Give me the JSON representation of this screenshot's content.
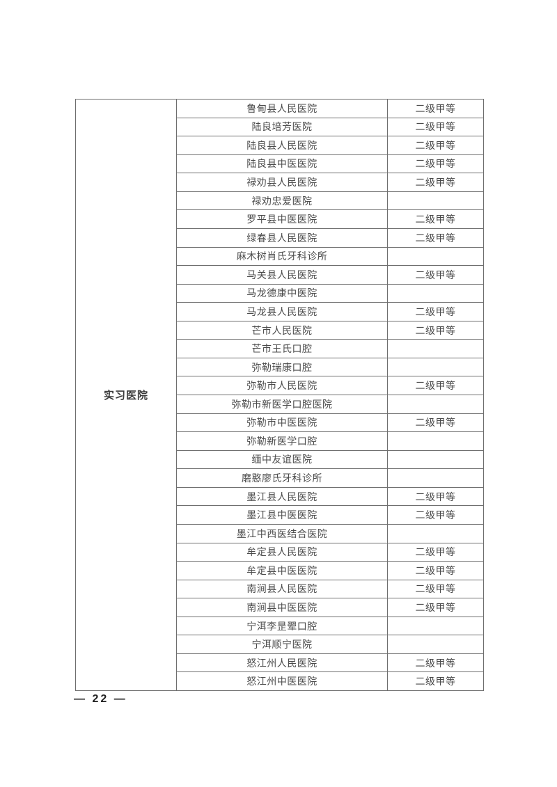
{
  "page": {
    "page_number": "— 22 —"
  },
  "colors": {
    "table_border": "#6e6e6e",
    "body_text": "#4a4a4a",
    "label_text": "#3a3a3a",
    "page_number_text": "#1f1f1f",
    "background": "#ffffff"
  },
  "table": {
    "row_label": "实习医院",
    "rows": [
      {
        "name": "鲁甸县人民医院",
        "grade": "二级甲等"
      },
      {
        "name": "陆良培芳医院",
        "grade": "二级甲等"
      },
      {
        "name": "陆良县人民医院",
        "grade": "二级甲等"
      },
      {
        "name": "陆良县中医医院",
        "grade": "二级甲等"
      },
      {
        "name": "禄劝县人民医院",
        "grade": "二级甲等"
      },
      {
        "name": "禄劝忠爱医院",
        "grade": ""
      },
      {
        "name": "罗平县中医医院",
        "grade": "二级甲等"
      },
      {
        "name": "绿春县人民医院",
        "grade": "二级甲等"
      },
      {
        "name": "麻木树肖氏牙科诊所",
        "grade": ""
      },
      {
        "name": "马关县人民医院",
        "grade": "二级甲等"
      },
      {
        "name": "马龙德康中医院",
        "grade": ""
      },
      {
        "name": "马龙县人民医院",
        "grade": "二级甲等"
      },
      {
        "name": "芒市人民医院",
        "grade": "二级甲等"
      },
      {
        "name": "芒市王氏口腔",
        "grade": ""
      },
      {
        "name": "弥勒瑞康口腔",
        "grade": ""
      },
      {
        "name": "弥勒市人民医院",
        "grade": "二级甲等"
      },
      {
        "name": "弥勒市新医学口腔医院",
        "grade": ""
      },
      {
        "name": "弥勒市中医医院",
        "grade": "二级甲等"
      },
      {
        "name": "弥勒新医学口腔",
        "grade": ""
      },
      {
        "name": "缅中友谊医院",
        "grade": ""
      },
      {
        "name": "磨憨廖氏牙科诊所",
        "grade": ""
      },
      {
        "name": "墨江县人民医院",
        "grade": "二级甲等"
      },
      {
        "name": "墨江县中医医院",
        "grade": "二级甲等"
      },
      {
        "name": "墨江中西医结合医院",
        "grade": ""
      },
      {
        "name": "牟定县人民医院",
        "grade": "二级甲等"
      },
      {
        "name": "牟定县中医医院",
        "grade": "二级甲等"
      },
      {
        "name": "南涧县人民医院",
        "grade": "二级甲等"
      },
      {
        "name": "南涧县中医医院",
        "grade": "二级甲等"
      },
      {
        "name": "宁洱李昰翚口腔",
        "grade": ""
      },
      {
        "name": "宁洱顺宁医院",
        "grade": ""
      },
      {
        "name": "怒江州人民医院",
        "grade": "二级甲等"
      },
      {
        "name": "怒江州中医医院",
        "grade": "二级甲等"
      }
    ]
  }
}
